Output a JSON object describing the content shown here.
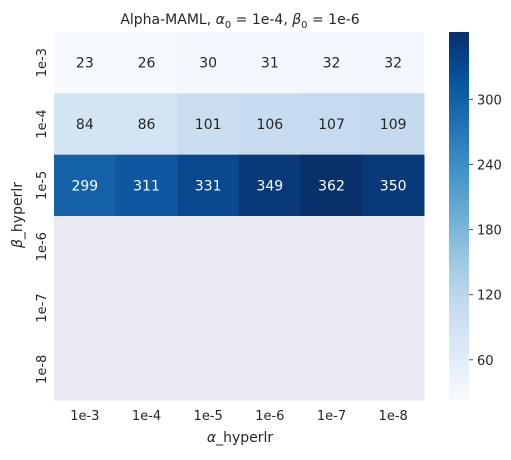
{
  "chart_data": {
    "type": "heatmap",
    "title_parts": {
      "prefix": "Alpha-MAML, ",
      "alpha_sym": "α",
      "alpha_sub": "0",
      "alpha_eq": " = 1e-4, ",
      "beta_sym": "β",
      "beta_sub": "0",
      "beta_eq": " = 1e-6"
    },
    "xlabel_parts": {
      "sym": "α",
      "rest": "_hyperlr"
    },
    "ylabel_parts": {
      "sym": "β",
      "rest": "_hyperlr"
    },
    "x_categories": [
      "1e-3",
      "1e-4",
      "1e-5",
      "1e-6",
      "1e-7",
      "1e-8"
    ],
    "y_categories": [
      "1e-3",
      "1e-4",
      "1e-5",
      "1e-6",
      "1e-7",
      "1e-8"
    ],
    "values": [
      [
        23,
        26,
        30,
        31,
        32,
        32
      ],
      [
        84,
        86,
        101,
        106,
        107,
        109
      ],
      [
        299,
        311,
        331,
        349,
        362,
        350
      ],
      [
        null,
        null,
        null,
        null,
        null,
        null
      ],
      [
        null,
        null,
        null,
        null,
        null,
        null
      ],
      [
        null,
        null,
        null,
        null,
        null,
        null
      ]
    ],
    "colorbar": {
      "colormap": "Blues",
      "vmin": 23,
      "vmax": 362,
      "ticks": [
        60,
        120,
        180,
        240,
        300
      ]
    },
    "missing_color": "#eaeaf2",
    "annotation_light_color": "#ffffff",
    "annotation_dark_color": "#262626"
  }
}
